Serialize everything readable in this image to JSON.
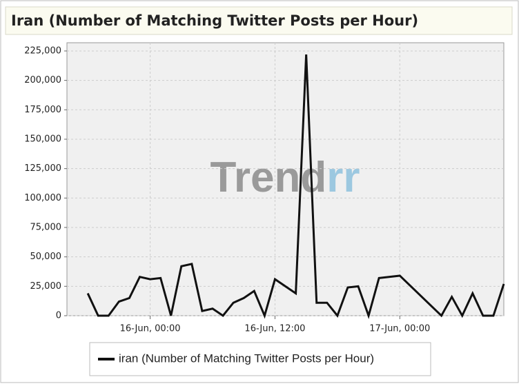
{
  "chart_data": {
    "type": "line",
    "title": "Iran (Number of Matching Twitter Posts per Hour)",
    "watermark": [
      "Trend",
      "rr"
    ],
    "x": [
      "15-Jun, 18:00",
      "15-Jun, 19:00",
      "15-Jun, 20:00",
      "15-Jun, 21:00",
      "15-Jun, 22:00",
      "15-Jun, 23:00",
      "16-Jun, 00:00",
      "16-Jun, 01:00",
      "16-Jun, 02:00",
      "16-Jun, 03:00",
      "16-Jun, 04:00",
      "16-Jun, 05:00",
      "16-Jun, 06:00",
      "16-Jun, 07:00",
      "16-Jun, 08:00",
      "16-Jun, 09:00",
      "16-Jun, 10:00",
      "16-Jun, 11:00",
      "16-Jun, 12:00",
      "16-Jun, 14:00",
      "16-Jun, 15:00",
      "16-Jun, 16:00",
      "16-Jun, 17:00",
      "16-Jun, 18:00",
      "16-Jun, 19:00",
      "16-Jun, 20:00",
      "16-Jun, 21:00",
      "16-Jun, 22:00",
      "17-Jun, 00:00",
      "17-Jun, 04:00",
      "17-Jun, 05:00",
      "17-Jun, 06:00",
      "17-Jun, 07:00",
      "17-Jun, 08:00",
      "17-Jun, 09:00",
      "17-Jun, 10:00"
    ],
    "series": [
      {
        "name": "iran (Number of Matching Twitter Posts per Hour)",
        "color": "#111111",
        "values": [
          19000,
          0,
          0,
          12000,
          15000,
          33000,
          31000,
          32000,
          0,
          42000,
          44000,
          4000,
          6000,
          0,
          11000,
          15000,
          21000,
          0,
          31000,
          19000,
          222000,
          11000,
          11000,
          0,
          24000,
          25000,
          0,
          32000,
          34000,
          0,
          16000,
          0,
          19000,
          0,
          0,
          27000
        ]
      }
    ],
    "xlim": [
      "15-Jun, 16:00",
      "17-Jun, 10:00"
    ],
    "xticks": [
      "16-Jun, 00:00",
      "16-Jun, 12:00",
      "17-Jun, 00:00"
    ],
    "ylim": [
      0,
      232000
    ],
    "yticks": [
      0,
      {
        "value": 25000,
        "label": "25,000"
      },
      {
        "value": 50000,
        "label": "50,000"
      },
      {
        "value": 75000,
        "label": "75,000"
      },
      {
        "value": 100000,
        "label": "100,000"
      },
      {
        "value": 125000,
        "label": "125,000"
      },
      {
        "value": 150000,
        "label": "150,000"
      },
      {
        "value": 175000,
        "label": "175,000"
      },
      {
        "value": 200000,
        "label": "200,000"
      },
      {
        "value": 225000,
        "label": "225,000"
      }
    ],
    "grid": true
  }
}
